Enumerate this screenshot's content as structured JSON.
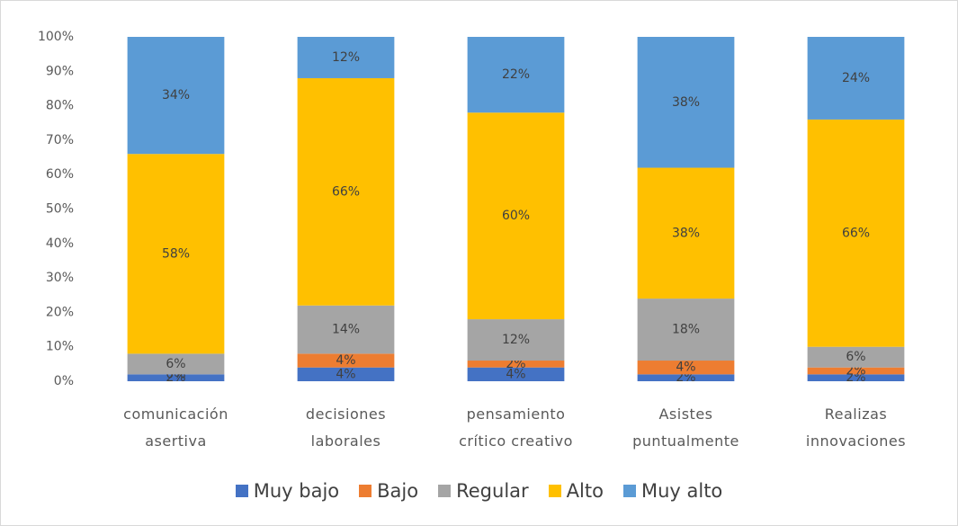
{
  "chart_data": {
    "type": "stacked_bar",
    "categories": [
      "comunicación asertiva",
      "decisiones laborales",
      "pensamiento crítico creativo",
      "Asistes puntualmente",
      "Realizas innovaciones"
    ],
    "series": [
      {
        "name": "Muy bajo",
        "color": "#4472c4",
        "values": [
          2,
          4,
          4,
          2,
          2
        ],
        "value_labels": [
          "2%",
          "4%",
          "4%",
          "2%",
          "2%"
        ]
      },
      {
        "name": "Bajo",
        "color": "#ed7d31",
        "values": [
          0,
          4,
          2,
          4,
          2
        ],
        "value_labels": [
          "0%",
          "4%",
          "2%",
          "4%",
          "2%"
        ]
      },
      {
        "name": "Regular",
        "color": "#a5a5a5",
        "values": [
          6,
          14,
          12,
          18,
          6
        ],
        "value_labels": [
          "6%",
          "14%",
          "12%",
          "18%",
          "6%"
        ]
      },
      {
        "name": "Alto",
        "color": "#ffc000",
        "values": [
          58,
          66,
          60,
          38,
          66
        ],
        "value_labels": [
          "58%",
          "66%",
          "60%",
          "38%",
          "66%"
        ]
      },
      {
        "name": "Muy alto",
        "color": "#5b9bd5",
        "values": [
          34,
          12,
          22,
          38,
          24
        ],
        "value_labels": [
          "34%",
          "12%",
          "22%",
          "38%",
          "24%"
        ]
      }
    ],
    "ylim": [
      0,
      100
    ],
    "yticks": [
      {
        "value": 0,
        "label": "0%"
      },
      {
        "value": 10,
        "label": "10%"
      },
      {
        "value": 20,
        "label": "20%"
      },
      {
        "value": 30,
        "label": "30%"
      },
      {
        "value": 40,
        "label": "40%"
      },
      {
        "value": 50,
        "label": "50%"
      },
      {
        "value": 60,
        "label": "60%"
      },
      {
        "value": 70,
        "label": "70%"
      },
      {
        "value": 80,
        "label": "80%"
      },
      {
        "value": 90,
        "label": "90%"
      },
      {
        "value": 100,
        "label": "100%"
      }
    ],
    "legend": "bottom"
  }
}
